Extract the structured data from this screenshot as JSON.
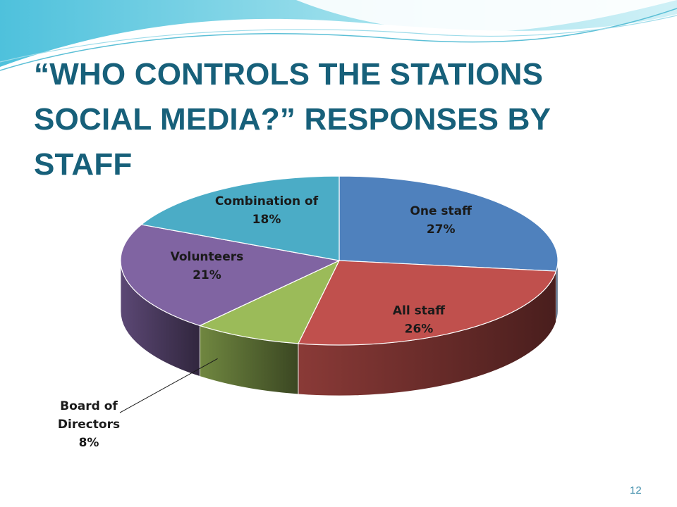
{
  "slide": {
    "title_line1": "“WHO CONTROLS THE STATIONS",
    "title_line2": "SOCIAL MEDIA?” RESPONSES BY STAFF",
    "page_number": "12",
    "colors": {
      "title": "#17607a",
      "wave": "#7fd0e2"
    }
  },
  "chart_data": {
    "type": "pie",
    "style": "3d",
    "title": "",
    "slices": [
      {
        "label": "One staff",
        "value": 27,
        "value_label": "27%",
        "color": "#4f81bd"
      },
      {
        "label": "All staff",
        "value": 26,
        "value_label": "26%",
        "color": "#c0504d"
      },
      {
        "label": "Board of Directors",
        "value": 8,
        "value_label": "8%",
        "color": "#9bbb59"
      },
      {
        "label": "Volunteers",
        "value": 21,
        "value_label": "21%",
        "color": "#8064a2"
      },
      {
        "label": "Combination of",
        "value": 18,
        "value_label": "18%",
        "color": "#4bacc6"
      }
    ]
  }
}
